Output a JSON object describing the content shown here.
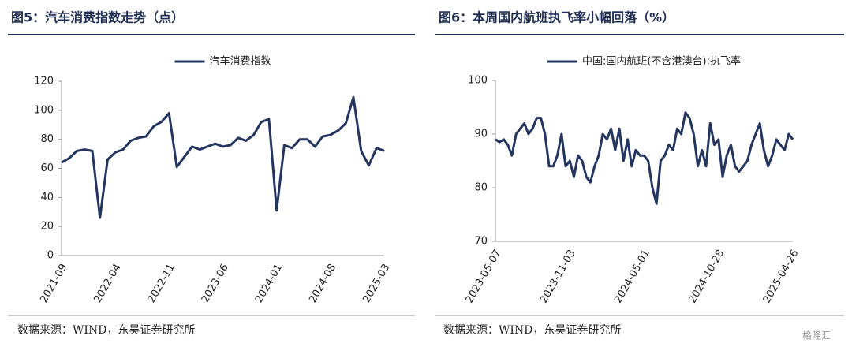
{
  "chart_data": [
    {
      "type": "line",
      "title": "图5：汽车消费指数走势（点）",
      "source": "数据来源：WIND，东吴证券研究所",
      "categories": [
        "2021-09",
        null,
        null,
        null,
        null,
        null,
        null,
        "2022-04",
        null,
        null,
        null,
        null,
        null,
        null,
        "2022-11",
        null,
        null,
        null,
        null,
        null,
        null,
        "2023-06",
        null,
        null,
        null,
        null,
        null,
        null,
        "2024-01",
        null,
        null,
        null,
        null,
        null,
        null,
        "2024-08",
        null,
        null,
        null,
        null,
        null,
        null,
        "2025-03"
      ],
      "series": [
        {
          "name": "汽车消费指数",
          "color": "#24365f",
          "values": [
            64,
            67,
            72,
            73,
            72,
            26,
            66,
            71,
            73,
            79,
            81,
            82,
            89,
            92,
            98,
            61,
            68,
            75,
            73,
            75,
            77,
            75,
            76,
            81,
            79,
            83,
            92,
            94,
            31,
            76,
            74,
            80,
            80,
            75,
            82,
            83,
            86,
            91,
            109,
            72,
            62,
            74,
            72
          ]
        }
      ],
      "ylim": [
        0,
        120
      ],
      "yticks": [
        0,
        20,
        40,
        60,
        80,
        100,
        120
      ],
      "legend": "top"
    },
    {
      "type": "line",
      "title": "图6：本周国内航班执飞率小幅回落（%）",
      "source": "数据来源：WIND，东吴证券研究所",
      "categories": [
        "2023-05-07",
        null,
        null,
        null,
        null,
        null,
        null,
        null,
        null,
        null,
        null,
        null,
        null,
        null,
        null,
        null,
        null,
        null,
        "2023-11-03",
        null,
        null,
        null,
        null,
        null,
        null,
        null,
        null,
        null,
        null,
        null,
        null,
        null,
        null,
        null,
        null,
        null,
        "2024-05-01",
        null,
        null,
        null,
        null,
        null,
        null,
        null,
        null,
        null,
        null,
        null,
        null,
        null,
        null,
        null,
        null,
        null,
        "2024-10-28",
        null,
        null,
        null,
        null,
        null,
        null,
        null,
        null,
        null,
        null,
        null,
        null,
        null,
        null,
        null,
        null,
        null,
        "2025-04-26"
      ],
      "series": [
        {
          "name": "中国:国内航班(不含港澳台):执飞率",
          "color": "#24365f",
          "values": [
            89,
            88.5,
            89,
            88,
            86,
            90,
            91,
            92,
            90,
            91,
            93,
            93,
            90,
            84,
            84,
            86,
            90,
            84,
            85,
            82,
            86,
            85,
            82,
            81,
            84,
            86,
            90,
            89,
            91,
            87,
            91,
            85,
            89,
            84,
            87,
            86,
            86,
            85,
            80,
            77,
            85,
            86,
            88,
            87,
            91,
            90,
            94,
            93,
            90,
            84,
            87,
            84,
            92,
            88,
            89,
            82,
            86,
            88,
            84,
            83,
            84,
            85,
            88,
            90,
            92,
            87,
            84,
            86,
            89,
            88,
            87,
            90,
            89
          ]
        }
      ],
      "ylim": [
        70,
        100
      ],
      "yticks": [
        70,
        80,
        90,
        100
      ],
      "legend": "top"
    }
  ],
  "watermark": "格隆汇"
}
